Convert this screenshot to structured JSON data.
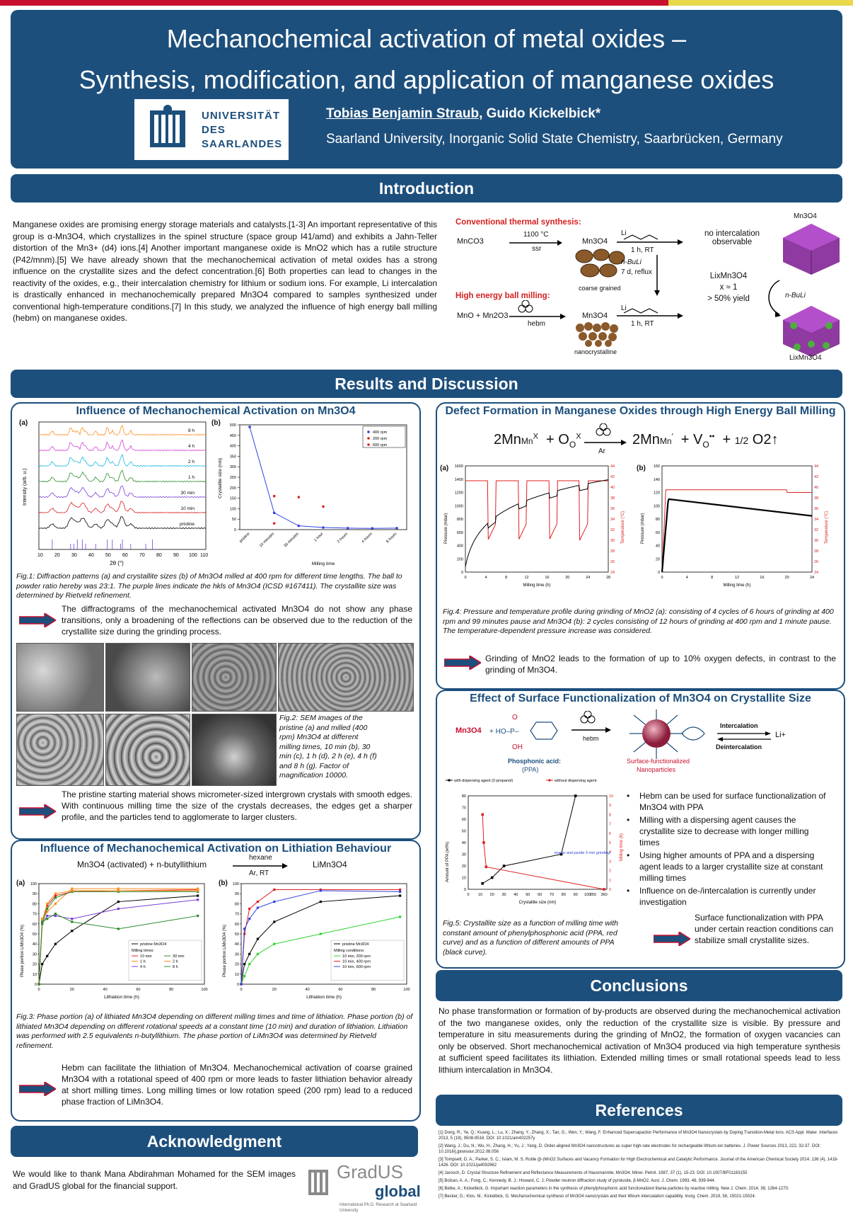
{
  "header": {
    "title_line1": "Mechanochemical activation of metal oxides –",
    "title_line2": "Synthesis, modification, and application of manganese oxides",
    "logo_line1": "UNIVERSITÄT",
    "logo_line2": "DES",
    "logo_line3": "SAARLANDES",
    "author_main": "Tobias Benjamin Straub",
    "author_rest": ", Guido Kickelbick*",
    "affiliation": "Saarland University, Inorganic Solid State Chemistry, Saarbrücken, Germany"
  },
  "intro": {
    "heading": "Introduction",
    "text": "Manganese oxides are promising energy storage materials and catalysts.[1-3] An important representative of this group is α-Mn3O4, which crystallizes in the spinel structure (space group I41/amd) and exhibits a Jahn-Teller distortion of the Mn3+ (d4) ions.[4] Another important manganese oxide is MnO2 which has a rutile structure (P42/mnm).[5] We have already shown that the mechanochemical activation of metal oxides has a strong influence on the crystallite sizes and the defect concentration.[6] Both properties can lead to changes in the reactivity of the oxides, e.g., their intercalation chemistry for lithium or sodium ions. For example, Li intercalation is drastically enhanced in mechanochemically prepared Mn3O4 compared to samples synthesized under conventional high-temperature conditions.[7] In this study, we analyzed the influence of high energy ball milling (hebm) on manganese oxides.",
    "scheme": {
      "conv_label": "Conventional thermal synthesis:",
      "mnco3": "MnCO3",
      "cond1": "1100 °C",
      "cond1b": "ssr",
      "mn3o4": "Mn3O4",
      "li": "Li",
      "rt": "1 h, RT",
      "no_int": "no intercalation observable",
      "coarse": "coarse grained",
      "nbuli": "n-BuLi",
      "reflux": "7 d, reflux",
      "limn": "LixMn3O4",
      "x1": "x ≈ 1",
      "yield": "> 50% yield",
      "hebm_label": "High energy ball milling:",
      "mno": "MnO + Mn2O3",
      "hebm": "hebm",
      "mn3o4b": "Mn3O4",
      "lib": "Li",
      "rtb": "1 h, RT",
      "nano": "nanocrystalline",
      "crys_top": "Mn3O4",
      "crys_bot": "LixMn3O4",
      "crys_arrow": "n-BuLi"
    }
  },
  "results_heading": "Results and Discussion",
  "panel1": {
    "title": "Influence of Mechanochemical Activation on Mn3O4",
    "label_a": "(a)",
    "label_b": "(b)",
    "xrd_labels": [
      "8 h",
      "4 h",
      "2 h",
      "1 h",
      "30 min",
      "10 min",
      "pristine"
    ],
    "xrd_xlabel": "2θ (°)",
    "xrd_ylabel": "Intensity (arb. u.)",
    "caption1": "Fig.1: Diffraction patterns (a) and crystallite sizes (b) of Mn3O4 milled at 400 rpm for different time lengths. The ball to powder ratio hereby was 23:1. The purple lines indicate the hkls of Mn3O4 (ICSD #167411). The crystallite size was determined by Rietveld refinement.",
    "note1": "The diffractograms of the mechanochemical activated Mn3O4 do not show any phase transitions, only a broadening of the reflections can be observed due to the reduction of the crystallite size during the grinding process.",
    "caption2": "Fig.2: SEM images of the pristine (a) and milled (400 rpm) Mn3O4 at different milling times, 10 min (b), 30 min (c), 1 h (d), 2 h (e), 4 h (f) and 8 h (g). Factor of magnification 10000.",
    "note2": "The pristine starting material shows micrometer-sized intergrown crystals with smooth edges. With continuous milling time the size of the crystals decreases, the edges get a sharper profile, and the particles tend to agglomerate to larger clusters."
  },
  "panel2": {
    "title": "Influence of Mechanochemical Activation on Lithiation Behaviour",
    "reaction_left": "Mn3O4 (activated) + n-butyllithium",
    "reaction_top": "hexane",
    "reaction_bot": "Ar, RT",
    "reaction_right": "LiMn3O4",
    "label_a": "(a)",
    "label_b": "(b)",
    "caption": "Fig.3: Phase portion (a) of lithiated Mn3O4 depending on different milling times and time of lithiation. Phase portion (b) of lithiated Mn3O4 depending on different rotational speeds at a constant time (10 min) and duration of lithiation. Lithiation was performed with 2.5 equivalents n-butyllithium. The phase portion of LiMn3O4 was determined by Rietveld refinement.",
    "note": "Hebm can facilitate the lithiation of Mn3O4. Mechanochemical activation of coarse grained Mn3O4 with a rotational speed of 400 rpm or more leads to faster lithiation behavior already at short milling times. Long milling times or low rotation speed (200 rpm) lead to a reduced phase fraction of LiMn3O4."
  },
  "panel3": {
    "title": "Defect Formation in Manganese Oxides through High Energy Ball Milling",
    "eq_lhs": "2Mn",
    "eq_o": "O",
    "eq_ar": "Ar",
    "eq_rhs1": "2Mn",
    "eq_v": "V",
    "eq_o2": "O2↑",
    "eq_half": "1/2",
    "label_a": "(a)",
    "label_b": "(b)",
    "caption": "Fig.4: Pressure and temperature profile during grinding of MnO2 (a): consisting of 4 cycles of 6 hours of grinding at 400 rpm and 99 minutes pause and Mn3O4 (b): 2 cycles consisting of 12 hours of grinding at 400 rpm and 1 minute pause. The temperature-dependent pressure increase was considered.",
    "note": "Grinding of MnO2 leads to the formation of up to 10% oxygen defects, in contrast to the grinding of Mn3O4."
  },
  "panel4": {
    "title": "Effect of Surface Functionalization of Mn3O4 on Crystallite Size",
    "mn3o4": "Mn3O4",
    "hebm": "hebm",
    "ppa": "Phosphonic acid:",
    "ppa2": "(PPA)",
    "sfn": "Surface-functionalized",
    "sfn2": "Nanoparticles",
    "inter": "Intercalation",
    "deinter": "Deintercalation",
    "li": "Li+",
    "legend1": "with dispersing agent (2-propanol)",
    "legend2": "without dispersing agent",
    "note_mortar": "mortar and pestle 5 min grinding",
    "bullets": [
      "Hebm can be used for surface functionalization of Mn3O4 with PPA",
      "Milling with a dispersing agent causes the crystallite size to decrease with longer milling times",
      "Using higher amounts of PPA and a dispersing agent leads to a larger crystallite size at constant milling times",
      "Influence on de-/intercalation is currently under investigation"
    ],
    "caption": "Fig.5: Crystallite size as a function of milling time with constant amount of phenylphosphonic acid (PPA, red curve) and as a function of different amounts of PPA (black curve).",
    "note": "Surface functionalization with PPA under certain reaction conditions can stabilize small crystallite sizes."
  },
  "conclusions": {
    "heading": "Conclusions",
    "text": "No phase transformation or formation of by-products are observed during the mechanochemical activation of the two manganese oxides, only the reduction of the crystallite size is visible. By pressure and temperature in situ measurements during the grinding of MnO2, the formation of oxygen vacancies can only be observed. Short mechanochemical activation of Mn3O4 produced via high temperature synthesis at sufficient speed facilitates its lithiation. Extended milling times or small rotational speeds lead to less lithium intercalation in Mn3O4."
  },
  "references": {
    "heading": "References",
    "items": [
      "[1] Dong, R.; Ye, Q.; Kuang, L.; Lu, X.; Zhang, Y.; Zhang, X.; Tan, G.; Wen, Y.; Wang, F. Enhanced Supercapacitor Performance of Mn3O4 Nanocrystals by Doping Transition-Metal Ions. ACS Appl. Mater. Interfaces 2013, 5 (19), 9508-9516. DOI: 10.1021/am402257y",
      "[2] Wang, J.; Du, N.; Wu, H.; Zhang, H.; Yu, J.; Yang, D. Order-aligned Mn3O4 nanostructures as super high-rate electrodes for rechargeable lithium-ion batteries. J. Power Sources 2013, 222, 32-37. DOI: 10.1016/j.jpowsour.2012.08.056",
      "[3] Tompsett, D. A.; Parker, S. C.; Islam, M. S. Rutile (β-)MnO2 Surfaces and Vacancy Formation for High Electrochemical and Catalytic Performance. Journal of the American Chemical Society 2014, 136 (4), 1418-1426. DOI: 10.1021/ja4092962",
      "[4] Jarosch, D. Crystal Structure Refinement and Reflectance Measurements of Hausmannite, Mn3O4. Miner. Petrol. 1987, 37 (1), 15-23. DOI: 10.1007/BF01163155",
      "[5] Bolzan, A. A.; Fong, C.; Kennedy, B. J.; Howard, C. J. Powder neutron diffraction study of pyrolusite, β-MnO2. Aust. J. Chem. 1993, 46, 939-944.",
      "[6] Betke, A.; Kickelbick, G. Important reaction parameters in the synthesis of phenylphosphonic acid functionalized titania particles by reactive milling. New J. Chem. 2014, 38, 1264-1270.",
      "[7] Becker, D.; Klos, M.; Kickelbick, G. Mechanochemical synthesis of Mn3O4 nanocrystals and their lithium intercalation capability. Inorg. Chem. 2019, 58, 15021-15024."
    ]
  },
  "acknowledgment": {
    "heading": "Acknowledgment",
    "text": "We would like to thank Mana Abdirahman Mohamed for the SEM images and GradUS global for the financial support.",
    "logo": "GradUS",
    "logo2": "global",
    "logo_sub": "International Ph.D. Research at Saarland University"
  },
  "chart_data": [
    {
      "type": "scatter",
      "title": "Fig.1 (b) Crystallite size",
      "xlabel": "Milling time",
      "ylabel": "Crystallite size (nm)",
      "categories": [
        "pristine",
        "10 minutes",
        "30 minutes",
        "1 hour",
        "2 hours",
        "4 hours",
        "8 hours"
      ],
      "ylim": [
        0,
        500
      ],
      "series": [
        {
          "name": "400 rpm",
          "values": [
            490,
            80,
            18,
            10,
            7,
            6,
            7
          ]
        },
        {
          "name": "200 rpm",
          "values": [
            null,
            160,
            155,
            110,
            null,
            null,
            null
          ]
        },
        {
          "name": "600 rpm",
          "values": [
            null,
            30,
            null,
            null,
            null,
            null,
            null
          ]
        }
      ]
    },
    {
      "type": "line",
      "title": "Fig.3 (a)",
      "xlabel": "Lithiation time (h)",
      "ylabel": "Phase portion LiMn3O4 (%)",
      "ylim": [
        0,
        100
      ],
      "x": [
        0,
        2,
        5,
        10,
        20,
        48,
        96
      ],
      "series": [
        {
          "name": "pristine Mn3O4",
          "values": [
            0,
            20,
            28,
            40,
            53,
            82,
            88
          ]
        },
        {
          "name": "10 min",
          "values": [
            0,
            62,
            78,
            88,
            92,
            93,
            94
          ]
        },
        {
          "name": "1 h",
          "values": [
            0,
            65,
            72,
            80,
            95,
            95,
            95
          ]
        },
        {
          "name": "4 h",
          "values": [
            0,
            60,
            68,
            68,
            65,
            75,
            84
          ]
        },
        {
          "name": "30 min",
          "values": [
            0,
            60,
            75,
            86,
            92,
            92,
            92
          ]
        },
        {
          "name": "2 h",
          "values": [
            0,
            63,
            80,
            90,
            93,
            93,
            93
          ]
        },
        {
          "name": "8 h",
          "values": [
            0,
            62,
            65,
            70,
            62,
            55,
            68
          ]
        }
      ]
    },
    {
      "type": "line",
      "title": "Fig.3 (b)",
      "xlabel": "Lithiation time (h)",
      "ylabel": "Phase portion LiMn3O4 (%)",
      "ylim": [
        0,
        100
      ],
      "x": [
        0,
        2,
        5,
        10,
        20,
        48,
        96
      ],
      "series": [
        {
          "name": "pristine Mn3O4",
          "values": [
            0,
            20,
            30,
            45,
            62,
            82,
            88
          ]
        },
        {
          "name": "10 min, 200 rpm",
          "values": [
            0,
            8,
            20,
            30,
            40,
            50,
            67
          ]
        },
        {
          "name": "10 min, 400 rpm",
          "values": [
            0,
            50,
            75,
            82,
            94,
            94,
            94
          ]
        },
        {
          "name": "10 min, 600 rpm",
          "values": [
            0,
            55,
            65,
            76,
            82,
            93,
            92
          ]
        }
      ]
    },
    {
      "type": "line",
      "title": "Fig.4 (a)",
      "xlabel": "Milling time (h)",
      "ylabel": "Pressure (mbar)",
      "y2label": "Temperature (°C)",
      "ylim": [
        0,
        1600
      ],
      "xlim": [
        0,
        28
      ]
    },
    {
      "type": "line",
      "title": "Fig.4 (b)",
      "xlabel": "Milling time (h)",
      "ylabel": "Pressure (mbar)",
      "y2label": "Temperature (°C)",
      "ylim": [
        0,
        160
      ],
      "xlim": [
        0,
        24
      ]
    },
    {
      "type": "line",
      "title": "Fig.5",
      "xlabel": "Crystallite size (nm)",
      "ylabel": "Amount of PPA (wt%)",
      "y2label": "Milling time (h)",
      "ylim": [
        0,
        80
      ],
      "series": [
        {
          "name": "with dispersing agent (2-propanol)",
          "x": [
            12,
            20,
            30,
            78,
            90
          ],
          "values": [
            5,
            10,
            20,
            30,
            80
          ]
        },
        {
          "name": "without dispersing agent",
          "x": [
            12,
            13,
            15,
            360
          ],
          "values": [
            8,
            5,
            2.4,
            0
          ]
        }
      ]
    }
  ]
}
